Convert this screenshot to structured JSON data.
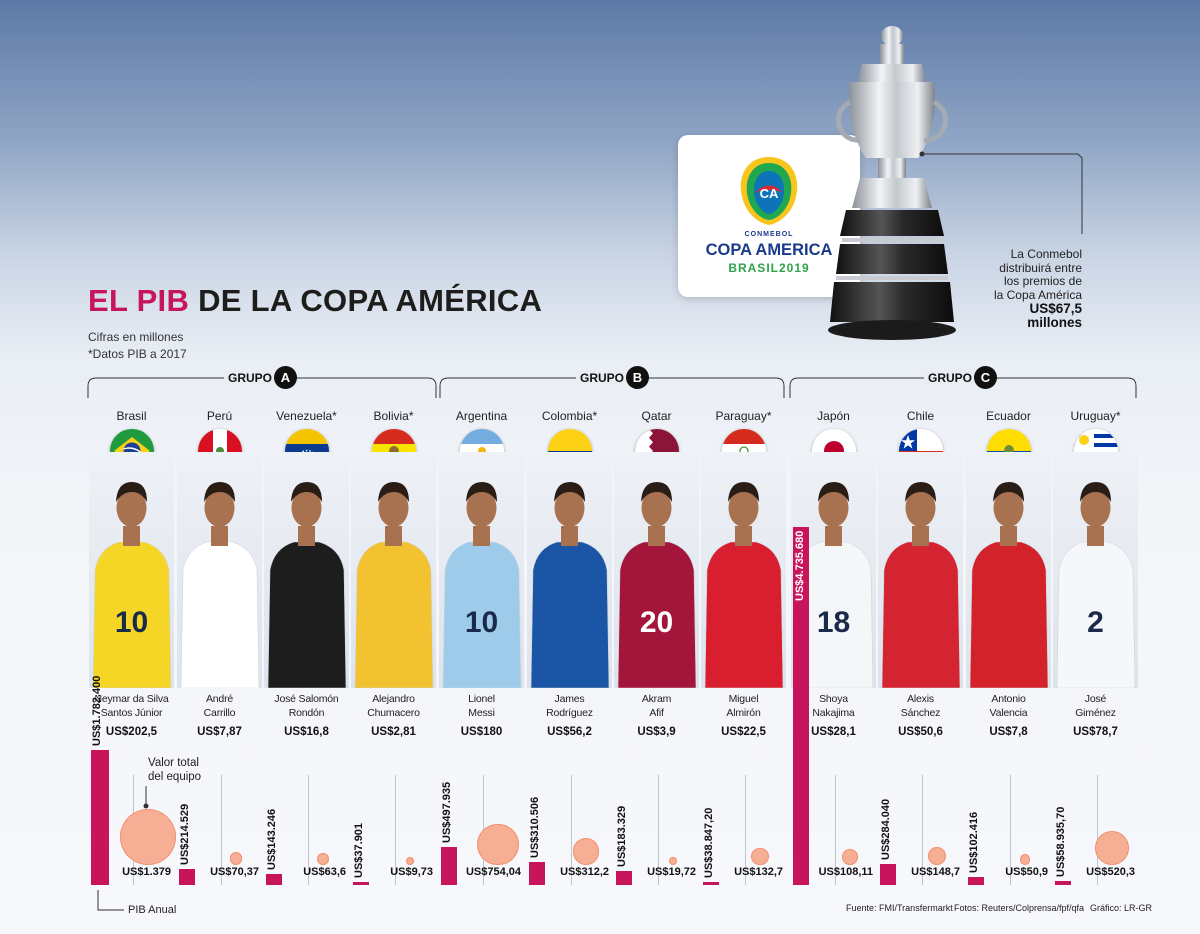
{
  "header": {
    "title_highlight": "EL PIB",
    "title_rest": "DE LA COPA AMÉRICA",
    "note_units": "Cifras en millones",
    "note_pib": "*Datos PIB a 2017"
  },
  "logo": {
    "brand_small": "CONMEBOL",
    "brand_main": "COPA AMERICA",
    "brand_sub": "BRASIL2019",
    "emblem_letters": "CA"
  },
  "prize": {
    "text_lines": [
      "La Conmebol",
      "distribuirá entre",
      "los premios de",
      "la Copa América"
    ],
    "amount": "US$67,5",
    "amount_unit": "millones"
  },
  "groups": [
    {
      "label": "GRUPO",
      "letter": "A"
    },
    {
      "label": "GRUPO",
      "letter": "B"
    },
    {
      "label": "GRUPO",
      "letter": "C"
    }
  ],
  "legend": {
    "team_value": "Valor total del equipo",
    "team_value_lines": [
      "Valor total",
      "del equipo"
    ],
    "pib": "PIB Anual"
  },
  "footer": {
    "source": "Fuente: FMI/Transfermarkt",
    "photos": "Fotos: Reuters/Colprensa/fpf/qfa",
    "graphic": "Gráfico: LR-GR"
  },
  "colors": {
    "accent": "#c8145a",
    "bubble": "#f6ae94",
    "bubble_border": "#f29373"
  },
  "chart_data": {
    "type": "bar",
    "units": "millones de US$",
    "categories": [
      "Brasil",
      "Perú",
      "Venezuela*",
      "Bolivia*",
      "Argentina",
      "Colombia*",
      "Qatar",
      "Paraguay*",
      "Japón",
      "Chile",
      "Ecuador",
      "Uruguay*"
    ],
    "series": [
      {
        "name": "PIB Anual",
        "values": [
          1782400,
          214529,
          143246,
          37901,
          497935,
          310506,
          183329,
          38847.2,
          4735680,
          284040,
          102416,
          58935.7
        ],
        "labels": [
          "US$1.782.400",
          "US$214.529",
          "US$143.246",
          "US$37.901",
          "US$497.935",
          "US$310.506",
          "US$183.329",
          "US$38.847,20",
          "US$4.735.680",
          "US$284.040",
          "US$102.416",
          "US$58.935,70"
        ]
      },
      {
        "name": "Valor total del equipo",
        "values": [
          1379,
          70.37,
          63.6,
          9.73,
          754.04,
          312.2,
          19.72,
          132.7,
          108.11,
          148.7,
          50.9,
          520.3
        ],
        "labels": [
          "US$1.379",
          "US$70,37",
          "US$63,6",
          "US$9,73",
          "US$754,04",
          "US$312,2",
          "US$19,72",
          "US$132,7",
          "US$108,11",
          "US$148,7",
          "US$50,9",
          "US$520,3"
        ]
      }
    ],
    "players": [
      {
        "name_lines": [
          "Neymar da Silva",
          "Santos Júnior"
        ],
        "value": "US$202,5",
        "flag": "brazil-flag-icon"
      },
      {
        "name_lines": [
          "André",
          "Carrillo"
        ],
        "value": "US$7,87",
        "flag": "peru-flag-icon"
      },
      {
        "name_lines": [
          "José Salomón",
          "Rondón"
        ],
        "value": "US$16,8",
        "flag": "venezuela-flag-icon"
      },
      {
        "name_lines": [
          "Alejandro",
          "Chumacero"
        ],
        "value": "US$2,81",
        "flag": "bolivia-flag-icon"
      },
      {
        "name_lines": [
          "Lionel",
          "Messi"
        ],
        "value": "US$180",
        "flag": "argentina-flag-icon"
      },
      {
        "name_lines": [
          "James",
          "Rodríguez"
        ],
        "value": "US$56,2",
        "flag": "colombia-flag-icon"
      },
      {
        "name_lines": [
          "Akram",
          "Afif"
        ],
        "value": "US$3,9",
        "flag": "qatar-flag-icon"
      },
      {
        "name_lines": [
          "Miguel",
          "Almirón"
        ],
        "value": "US$22,5",
        "flag": "paraguay-flag-icon"
      },
      {
        "name_lines": [
          "Shoya",
          "Nakajima"
        ],
        "value": "US$28,1",
        "flag": "japan-flag-icon"
      },
      {
        "name_lines": [
          "Alexis",
          "Sánchez"
        ],
        "value": "US$50,6",
        "flag": "chile-flag-icon"
      },
      {
        "name_lines": [
          "Antonio",
          "Valencia"
        ],
        "value": "US$7,8",
        "flag": "ecuador-flag-icon"
      },
      {
        "name_lines": [
          "José",
          "Giménez"
        ],
        "value": "US$78,7",
        "flag": "uruguay-flag-icon"
      }
    ],
    "jersey_numbers": [
      "10",
      "",
      "",
      "",
      "10",
      "",
      "20",
      "",
      "18",
      "",
      "",
      "2"
    ]
  }
}
